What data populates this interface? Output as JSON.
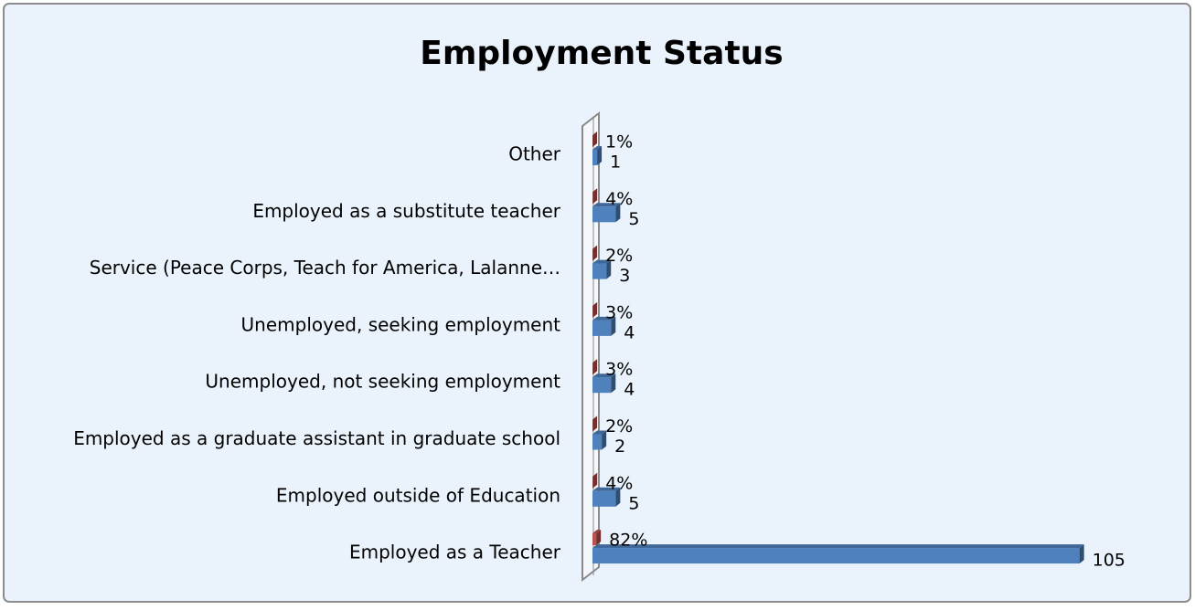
{
  "chart_data": {
    "type": "bar",
    "orientation": "horizontal",
    "title": "Employment Status",
    "categories": [
      "Other",
      "Employed as a substitute teacher",
      "Service (Peace Corps, Teach for America, Lalanne…",
      "Unemployed, seeking employment",
      "Unemployed, not seeking employment",
      "Employed as a graduate assistant in graduate school",
      "Employed outside of Education",
      "Employed as a Teacher"
    ],
    "series": [
      {
        "color": "#4f81bd",
        "values": [
          1,
          5,
          3,
          4,
          4,
          2,
          5,
          105
        ]
      },
      {
        "color": "#c0504d",
        "values": [
          0.01,
          0.04,
          0.02,
          0.03,
          0.03,
          0.02,
          0.04,
          0.82
        ],
        "value_labels": [
          "1%",
          "4%",
          "2%",
          "3%",
          "3%",
          "2%",
          "4%",
          "82%"
        ]
      }
    ],
    "xlim": [
      0,
      110
    ]
  }
}
